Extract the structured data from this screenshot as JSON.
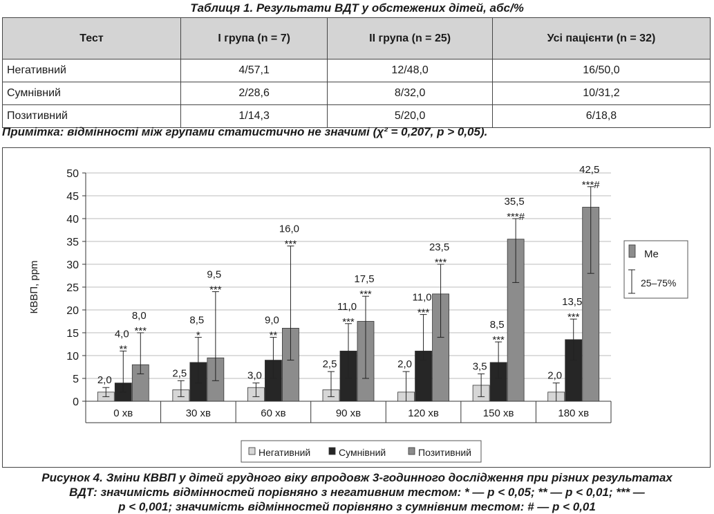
{
  "table_title": "Таблиця 1. Результати ВДТ у обстежених дітей, абс/%",
  "table": {
    "headers": [
      "Тест",
      "I група (n = 7)",
      "II група (n = 25)",
      "Усі пацієнти (n = 32)"
    ],
    "rows": [
      [
        "Негативний",
        "4/57,1",
        "12/48,0",
        "16/50,0"
      ],
      [
        "Сумнівний",
        "2/28,6",
        "8/32,0",
        "10/31,2"
      ],
      [
        "Позитивний",
        "1/14,3",
        "5/20,0",
        "6/18,8"
      ]
    ]
  },
  "note": "Примітка: відмінності між групами статистично не значимі (χ² = 0,207, p > 0,05).",
  "figure_caption": {
    "line1": "Рисунок 4. Зміни КВВП у дітей грудного віку впродовж 3-годинного дослідження при різних результатах",
    "line2": "ВДТ: значимість відмінностей порівняно з негативним тестом: * — p < 0,05; ** — p < 0,01; *** —",
    "line3": "p < 0,001; значимість відмінностей порівняно з сумнівним тестом: # — p < 0,01"
  },
  "chart_data": {
    "type": "bar",
    "ylabel": "КВВП, ppm",
    "xlabel": "",
    "ylim": [
      0,
      50
    ],
    "yticks": [
      0,
      5,
      10,
      15,
      20,
      25,
      30,
      35,
      40,
      45,
      50
    ],
    "grid": true,
    "categories": [
      "0 хв",
      "30 хв",
      "60 хв",
      "90 хв",
      "120 хв",
      "150 хв",
      "180 хв"
    ],
    "series": [
      {
        "name": "Негативний",
        "color": "#d6d6d6",
        "values": [
          2.0,
          2.5,
          3.0,
          2.5,
          2.0,
          3.5,
          2.0
        ],
        "labels": [
          "2,0",
          "2,5",
          "3,0",
          "2,5",
          "2,0",
          "3,5",
          "2,0"
        ],
        "err_low": [
          1.0,
          1.0,
          1.0,
          1.0,
          0,
          1.0,
          0
        ],
        "err_high": [
          3.0,
          4.5,
          4.0,
          6.5,
          6.5,
          6.0,
          4.0
        ],
        "marks": [
          "",
          "",
          "",
          "",
          "",
          "",
          ""
        ]
      },
      {
        "name": "Сумнівний",
        "color": "#262626",
        "values": [
          4.0,
          8.5,
          9.0,
          11.0,
          11.0,
          8.5,
          13.5
        ],
        "labels": [
          "4,0",
          "8,5",
          "9,0",
          "11,0",
          "11,0",
          "8,5",
          "13,5"
        ],
        "err_low": [
          2.0,
          4.0,
          5.0,
          5.0,
          9.0,
          5.0,
          9.0
        ],
        "err_high": [
          11.0,
          14.0,
          14.0,
          17.0,
          19.0,
          13.0,
          18.0
        ],
        "marks": [
          "**",
          "*",
          "**",
          "***",
          "***",
          "***",
          "***"
        ]
      },
      {
        "name": "Позитивний",
        "color": "#8c8c8c",
        "values": [
          8.0,
          9.5,
          16.0,
          17.5,
          23.5,
          35.5,
          42.5
        ],
        "labels": [
          "8,0",
          "9,5",
          "16,0",
          "17,5",
          "23,5",
          "35,5",
          "42,5"
        ],
        "err_low": [
          6.0,
          4.5,
          9.0,
          5.0,
          14.0,
          26.0,
          28.0
        ],
        "err_high": [
          15.0,
          24.0,
          34.0,
          23.0,
          30.0,
          40.0,
          47.0
        ],
        "marks": [
          "***",
          "***",
          "***",
          "***",
          "***",
          "***#",
          "***#"
        ]
      }
    ],
    "side_legend": {
      "median": "Me",
      "range": "25–75%"
    }
  }
}
